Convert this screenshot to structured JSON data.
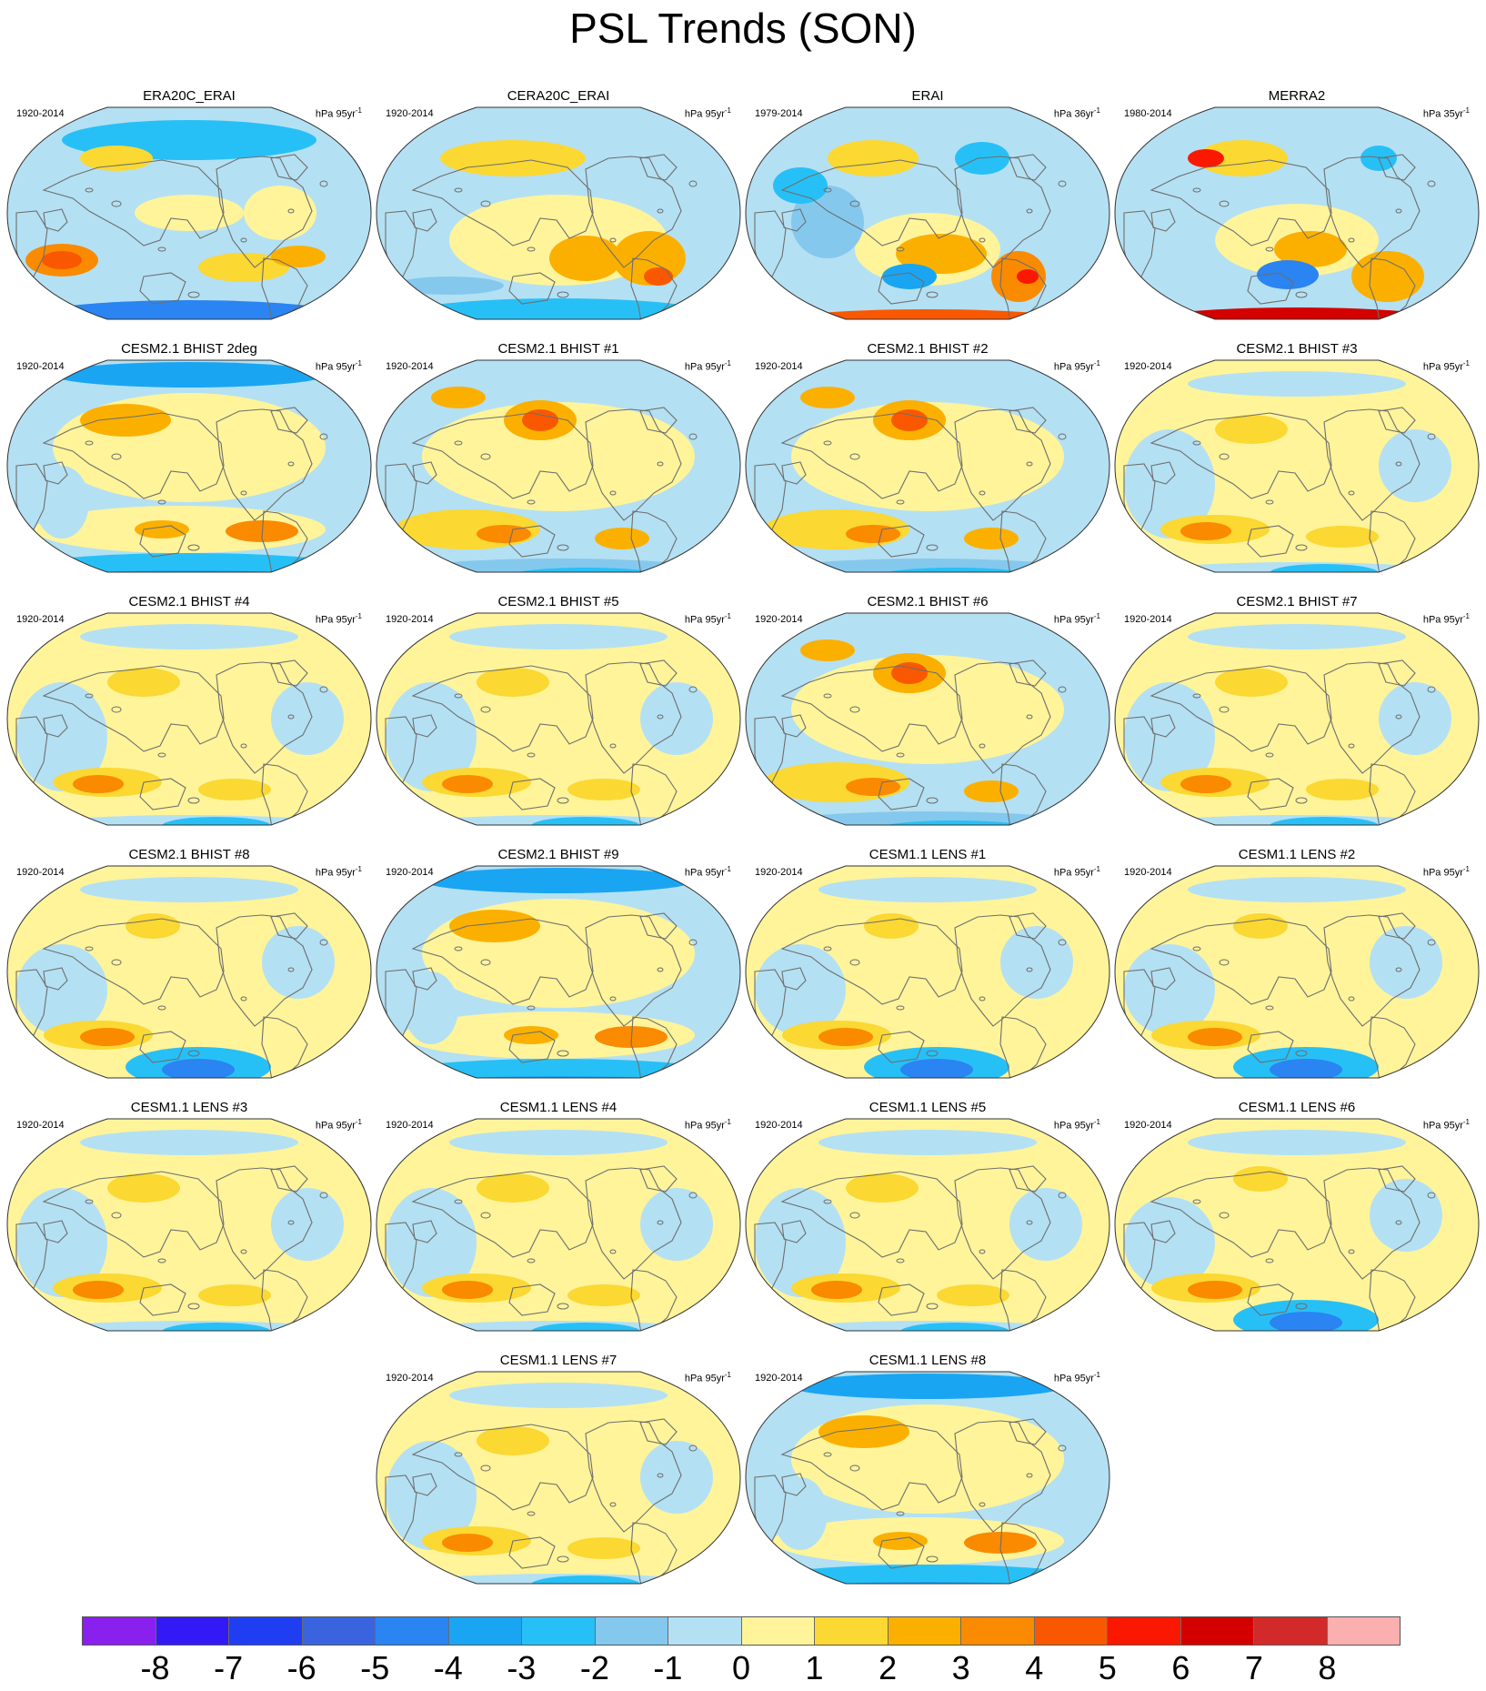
{
  "title": "PSL Trends (SON)",
  "panels": [
    {
      "label": "ERA20C_ERAI",
      "period": "1920-2014",
      "units": "hPa 95yr",
      "units_sup": "-1",
      "pattern": "era20c"
    },
    {
      "label": "CERA20C_ERAI",
      "period": "1920-2014",
      "units": "hPa 95yr",
      "units_sup": "-1",
      "pattern": "cera20c"
    },
    {
      "label": "ERAI",
      "period": "1979-2014",
      "units": "hPa 36yr",
      "units_sup": "-1",
      "pattern": "erai"
    },
    {
      "label": "MERRA2",
      "period": "1980-2014",
      "units": "hPa 35yr",
      "units_sup": "-1",
      "pattern": "merra2"
    },
    {
      "label": "CESM2.1 BHIST 2deg",
      "period": "1920-2014",
      "units": "hPa 95yr",
      "units_sup": "-1",
      "pattern": "neg-pole"
    },
    {
      "label": "CESM2.1 BHIST #1",
      "period": "1920-2014",
      "units": "hPa 95yr",
      "units_sup": "-1",
      "pattern": "pos-npac"
    },
    {
      "label": "CESM2.1 BHIST #2",
      "period": "1920-2014",
      "units": "hPa 95yr",
      "units_sup": "-1",
      "pattern": "pos-npac"
    },
    {
      "label": "CESM2.1 BHIST #3",
      "period": "1920-2014",
      "units": "hPa 95yr",
      "units_sup": "-1",
      "pattern": "mild"
    },
    {
      "label": "CESM2.1 BHIST #4",
      "period": "1920-2014",
      "units": "hPa 95yr",
      "units_sup": "-1",
      "pattern": "mild"
    },
    {
      "label": "CESM2.1 BHIST #5",
      "period": "1920-2014",
      "units": "hPa 95yr",
      "units_sup": "-1",
      "pattern": "mild"
    },
    {
      "label": "CESM2.1 BHIST #6",
      "period": "1920-2014",
      "units": "hPa 95yr",
      "units_sup": "-1",
      "pattern": "pos-npac"
    },
    {
      "label": "CESM2.1 BHIST #7",
      "period": "1920-2014",
      "units": "hPa 95yr",
      "units_sup": "-1",
      "pattern": "mild"
    },
    {
      "label": "CESM2.1 BHIST #8",
      "period": "1920-2014",
      "units": "hPa 95yr",
      "units_sup": "-1",
      "pattern": "neg-south"
    },
    {
      "label": "CESM2.1 BHIST #9",
      "period": "1920-2014",
      "units": "hPa 95yr",
      "units_sup": "-1",
      "pattern": "neg-pole"
    },
    {
      "label": "CESM1.1 LENS #1",
      "period": "1920-2014",
      "units": "hPa 95yr",
      "units_sup": "-1",
      "pattern": "neg-south"
    },
    {
      "label": "CESM1.1 LENS #2",
      "period": "1920-2014",
      "units": "hPa 95yr",
      "units_sup": "-1",
      "pattern": "neg-south"
    },
    {
      "label": "CESM1.1 LENS #3",
      "period": "1920-2014",
      "units": "hPa 95yr",
      "units_sup": "-1",
      "pattern": "mild"
    },
    {
      "label": "CESM1.1 LENS #4",
      "period": "1920-2014",
      "units": "hPa 95yr",
      "units_sup": "-1",
      "pattern": "mild"
    },
    {
      "label": "CESM1.1 LENS #5",
      "period": "1920-2014",
      "units": "hPa 95yr",
      "units_sup": "-1",
      "pattern": "mild"
    },
    {
      "label": "CESM1.1 LENS #6",
      "period": "1920-2014",
      "units": "hPa 95yr",
      "units_sup": "-1",
      "pattern": "neg-south"
    },
    {
      "label": "CESM1.1 LENS #7",
      "period": "1920-2014",
      "units": "hPa 95yr",
      "units_sup": "-1",
      "pattern": "mild"
    },
    {
      "label": "CESM1.1 LENS #8",
      "period": "1920-2014",
      "units": "hPa 95yr",
      "units_sup": "-1",
      "pattern": "neg-pole"
    }
  ],
  "colorbar": {
    "colors": [
      "#8a20ee",
      "#3219f5",
      "#1f3ef2",
      "#3a63e0",
      "#2a84f2",
      "#1aa5f2",
      "#27c0f6",
      "#85c8ee",
      "#b4e0f3",
      "#fff49a",
      "#fbd832",
      "#fbb000",
      "#fa8a00",
      "#fa5800",
      "#fa1800",
      "#d40000",
      "#d22a2a",
      "#fbb0b0"
    ],
    "labels": [
      "-8",
      "-7",
      "-6",
      "-5",
      "-4",
      "-3",
      "-2",
      "-1",
      "0",
      "1",
      "2",
      "3",
      "4",
      "5",
      "6",
      "7",
      "8"
    ]
  }
}
